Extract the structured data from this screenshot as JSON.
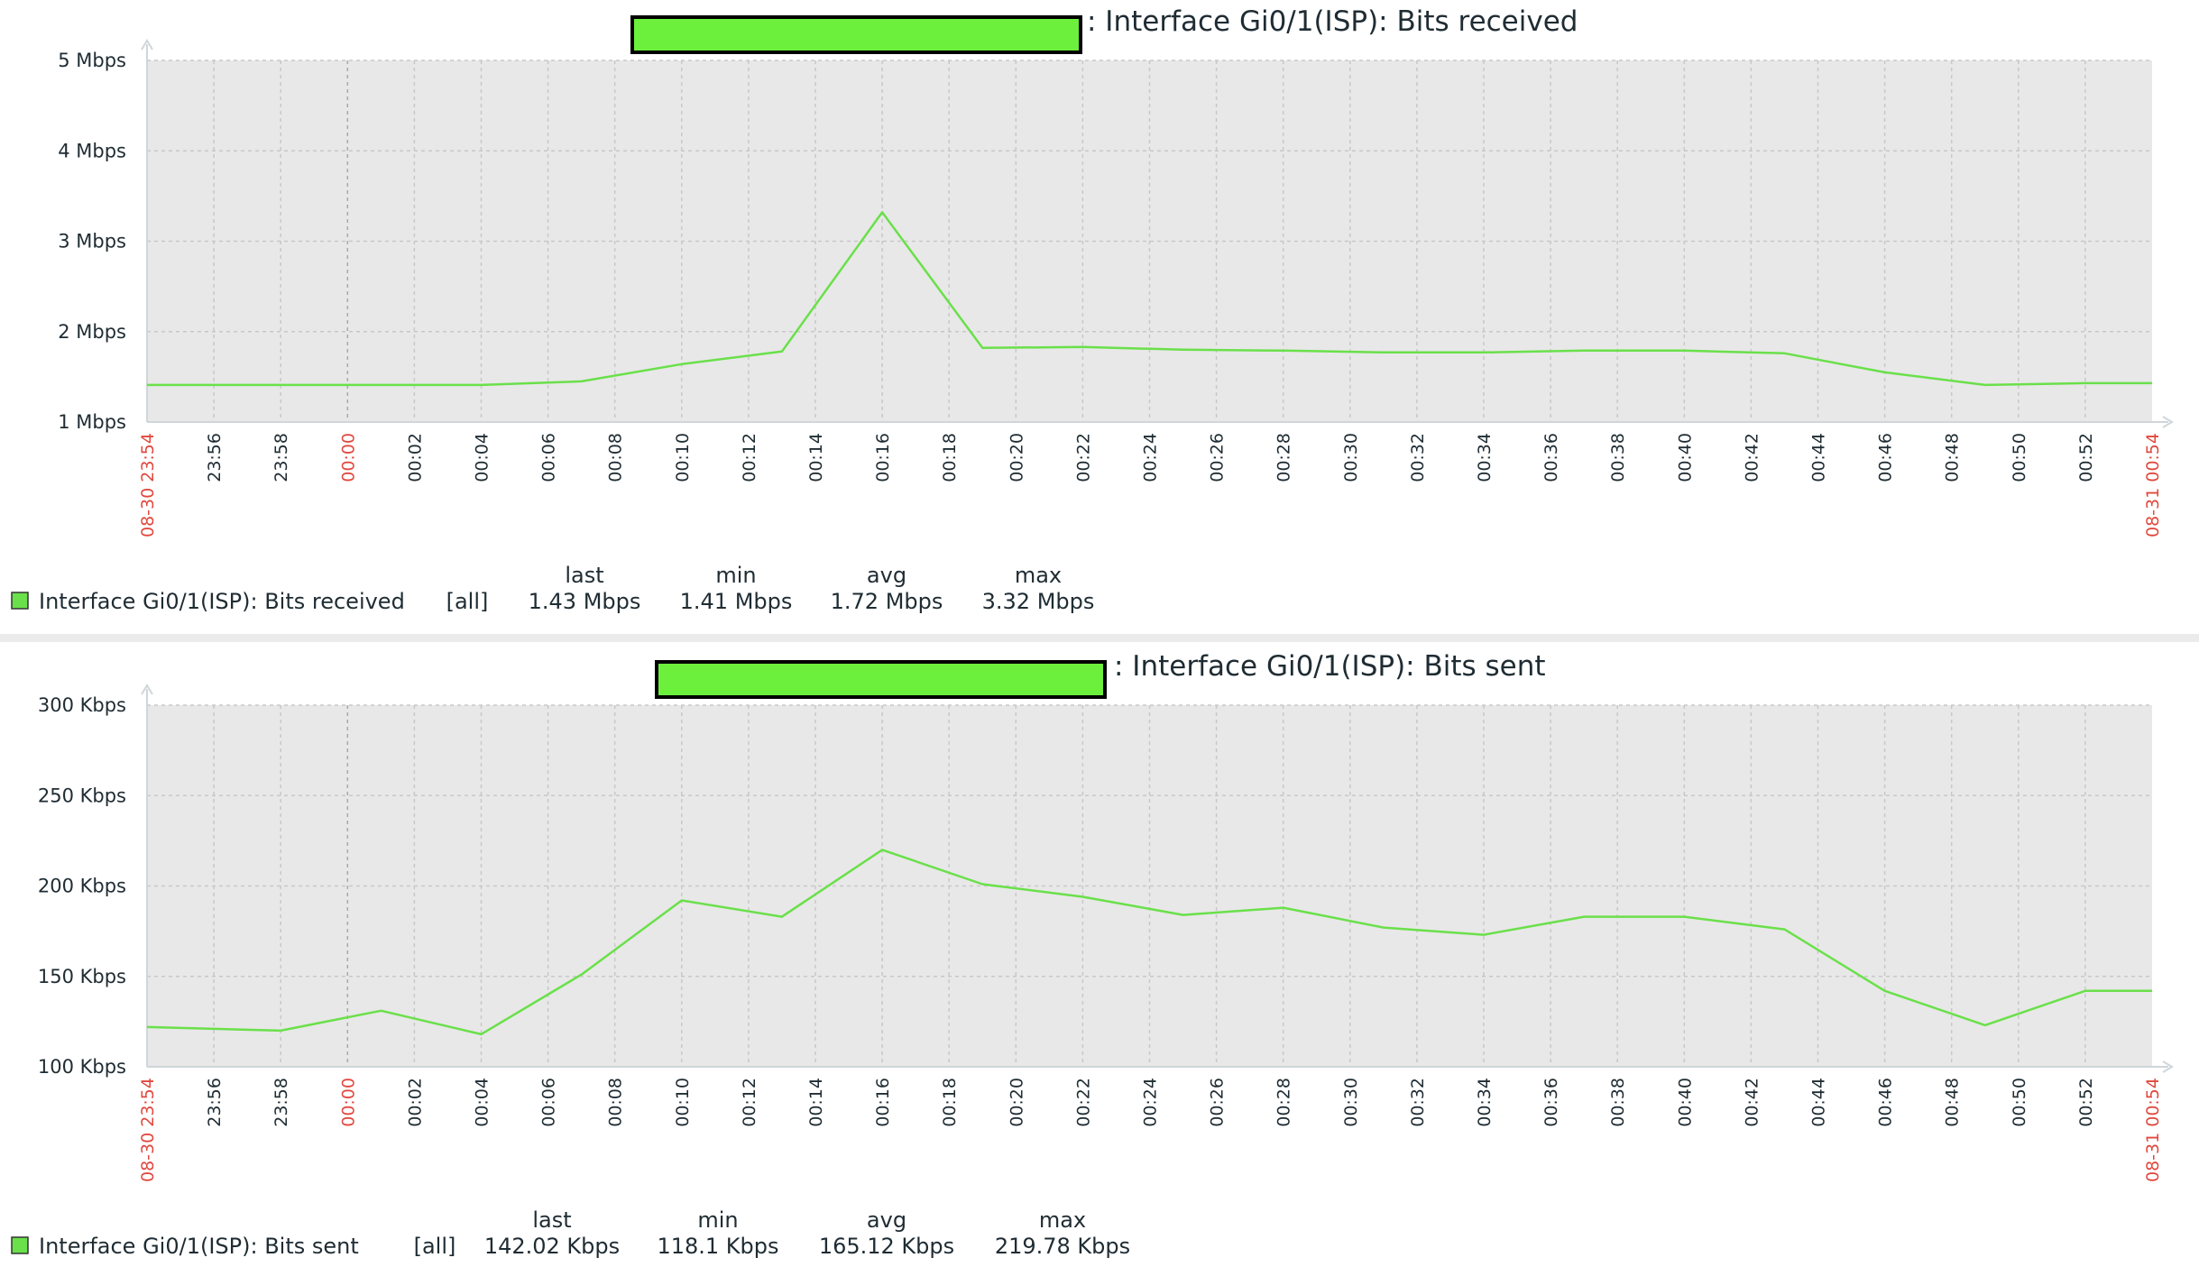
{
  "colors": {
    "series": "#6ae04a",
    "plot_background": "#e8e8e8",
    "grid": "#c8c8c8",
    "axis": "#cfd6da",
    "text": "#1f2c33",
    "highlight_text": "#e0483e",
    "redaction_fill": "#6cf03c",
    "redaction_border": "#000000"
  },
  "chart_data": [
    {
      "type": "line",
      "title": ": Interface Gi0/1(ISP): Bits received",
      "y_unit": "Mbps",
      "ylim": [
        1,
        5
      ],
      "y_ticks": [
        "1 Mbps",
        "2 Mbps",
        "3 Mbps",
        "4 Mbps",
        "5 Mbps"
      ],
      "x_tick_labels": [
        "08-30 23:54",
        "23:56",
        "23:58",
        "00:00",
        "00:02",
        "00:04",
        "00:06",
        "00:08",
        "00:10",
        "00:12",
        "00:14",
        "00:16",
        "00:18",
        "00:20",
        "00:22",
        "00:24",
        "00:26",
        "00:28",
        "00:30",
        "00:32",
        "00:34",
        "00:36",
        "00:38",
        "00:40",
        "00:42",
        "00:44",
        "00:46",
        "00:48",
        "00:50",
        "00:52",
        "08-31 00:54"
      ],
      "x_tick_highlight": [
        "08-30 23:54",
        "00:00",
        "08-31 00:54"
      ],
      "grid": true,
      "legend_position": "bottom-left",
      "series": [
        {
          "name": "Interface Gi0/1(ISP): Bits received",
          "x": [
            "23:54",
            "23:57",
            "00:01",
            "00:04",
            "00:07",
            "00:10",
            "00:13",
            "00:16",
            "00:19",
            "00:22",
            "00:25",
            "00:28",
            "00:31",
            "00:34",
            "00:37",
            "00:40",
            "00:43",
            "00:46",
            "00:49",
            "00:52",
            "00:54"
          ],
          "values": [
            1.41,
            1.41,
            1.41,
            1.41,
            1.45,
            1.64,
            1.78,
            3.32,
            1.82,
            1.83,
            1.8,
            1.79,
            1.77,
            1.77,
            1.79,
            1.79,
            1.76,
            1.55,
            1.41,
            1.43,
            1.43
          ]
        }
      ],
      "legend": {
        "headers": [
          "last",
          "min",
          "avg",
          "max"
        ],
        "entries": [
          {
            "name": "Interface Gi0/1(ISP): Bits received",
            "function": "[all]",
            "last": "1.43 Mbps",
            "min": "1.41 Mbps",
            "avg": "1.72 Mbps",
            "max": "3.32 Mbps"
          }
        ]
      }
    },
    {
      "type": "line",
      "title": ": Interface Gi0/1(ISP): Bits sent",
      "y_unit": "Kbps",
      "ylim": [
        100,
        300
      ],
      "y_ticks": [
        "100 Kbps",
        "150 Kbps",
        "200 Kbps",
        "250 Kbps",
        "300 Kbps"
      ],
      "x_tick_labels": [
        "08-30 23:54",
        "23:56",
        "23:58",
        "00:00",
        "00:02",
        "00:04",
        "00:06",
        "00:08",
        "00:10",
        "00:12",
        "00:14",
        "00:16",
        "00:18",
        "00:20",
        "00:22",
        "00:24",
        "00:26",
        "00:28",
        "00:30",
        "00:32",
        "00:34",
        "00:36",
        "00:38",
        "00:40",
        "00:42",
        "00:44",
        "00:46",
        "00:48",
        "00:50",
        "00:52",
        "08-31 00:54"
      ],
      "x_tick_highlight": [
        "08-30 23:54",
        "00:00",
        "08-31 00:54"
      ],
      "grid": true,
      "legend_position": "bottom-left",
      "series": [
        {
          "name": "Interface Gi0/1(ISP): Bits sent",
          "x": [
            "23:54",
            "23:58",
            "00:01",
            "00:04",
            "00:07",
            "00:10",
            "00:13",
            "00:16",
            "00:19",
            "00:22",
            "00:25",
            "00:28",
            "00:31",
            "00:34",
            "00:37",
            "00:40",
            "00:43",
            "00:46",
            "00:49",
            "00:52",
            "00:54"
          ],
          "values": [
            122,
            120,
            131,
            118,
            151,
            192,
            183,
            220,
            201,
            194,
            184,
            188,
            177,
            173,
            183,
            183,
            176,
            142,
            123,
            142,
            142
          ]
        }
      ],
      "legend": {
        "headers": [
          "last",
          "min",
          "avg",
          "max"
        ],
        "entries": [
          {
            "name": "Interface Gi0/1(ISP): Bits sent",
            "function": "[all]",
            "last": "142.02 Kbps",
            "min": "118.1 Kbps",
            "avg": "165.12 Kbps",
            "max": "219.78 Kbps"
          }
        ]
      }
    }
  ]
}
